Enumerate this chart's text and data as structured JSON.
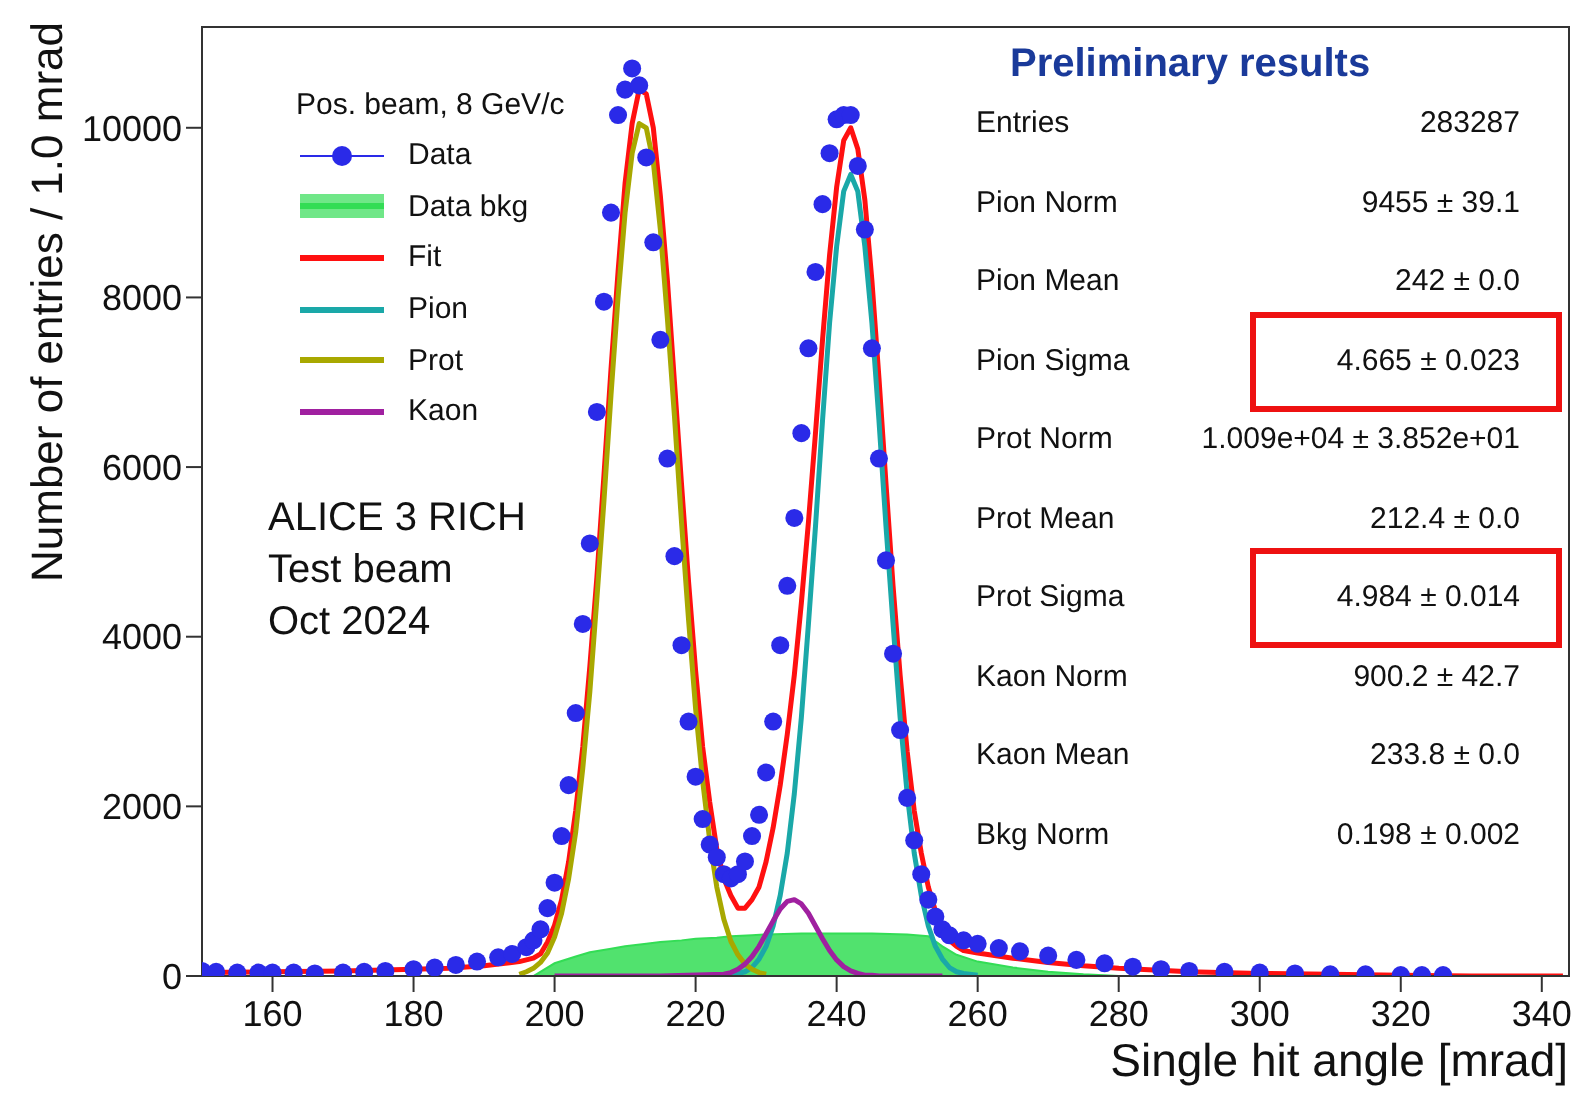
{
  "chart_data": {
    "type": "scatter",
    "xlabel": "Single hit angle [mrad]",
    "ylabel": "Number of entries / 1.0 mrad",
    "legend_title": "Pos. beam, 8 GeV/c",
    "legend": "top left",
    "xlim": [
      150,
      344
    ],
    "xticks": [
      160,
      180,
      200,
      220,
      240,
      260,
      280,
      300,
      320,
      340
    ],
    "ylim": [
      0,
      11200
    ],
    "yticks": [
      0,
      2000,
      4000,
      6000,
      8000,
      10000
    ],
    "annotations": [
      "Preliminary results",
      "ALICE 3 RICH",
      "Test beam",
      "Oct 2024",
      "Entries",
      "283287",
      "Pion Norm",
      "9455 ± 39.1",
      "Pion Mean",
      "242 ± 0.0",
      "Pion Sigma",
      "4.665 ± 0.023",
      "Prot Norm",
      "1.009e+04 ± 3.852e+01",
      "Prot Mean",
      "212.4 ± 0.0",
      "Prot Sigma",
      "4.984 ± 0.014",
      "Kaon Norm",
      "900.2 ± 42.7",
      "Kaon Mean",
      "233.8 ± 0.0",
      "Bkg Norm",
      "0.198 ± 0.002"
    ],
    "series": [
      {
        "name": "Data",
        "marker": "circle",
        "color": "#2a2ae8",
        "x": [
          150,
          152,
          155,
          158,
          160,
          163,
          166,
          170,
          173,
          176,
          180,
          183,
          186,
          189,
          192,
          194,
          196,
          197,
          198,
          199,
          200,
          201,
          202,
          203,
          204,
          205,
          206,
          207,
          208,
          209,
          210,
          211,
          212,
          213,
          214,
          215,
          216,
          217,
          218,
          219,
          220,
          221,
          222,
          223,
          224,
          225,
          226,
          227,
          228,
          229,
          230,
          231,
          232,
          233,
          234,
          235,
          236,
          237,
          238,
          239,
          240,
          241,
          242,
          243,
          244,
          245,
          246,
          247,
          248,
          249,
          250,
          251,
          252,
          253,
          254,
          255,
          256,
          258,
          260,
          263,
          266,
          270,
          274,
          278,
          282,
          286,
          290,
          295,
          300,
          305,
          310,
          315,
          320,
          323,
          326
        ],
        "values": [
          60,
          50,
          40,
          40,
          40,
          40,
          30,
          40,
          50,
          60,
          80,
          100,
          130,
          170,
          220,
          260,
          340,
          420,
          550,
          800,
          1100,
          1650,
          2250,
          3100,
          4150,
          5100,
          6650,
          7950,
          9000,
          10150,
          10450,
          10700,
          10500,
          9650,
          8650,
          7500,
          6100,
          4950,
          3900,
          3000,
          2350,
          1850,
          1550,
          1400,
          1200,
          1150,
          1200,
          1350,
          1650,
          1900,
          2400,
          3000,
          3900,
          4600,
          5400,
          6400,
          7400,
          8300,
          9100,
          9700,
          10100,
          10150,
          10150,
          9550,
          8800,
          7400,
          6100,
          4900,
          3800,
          2900,
          2100,
          1600,
          1200,
          900,
          700,
          550,
          480,
          420,
          380,
          330,
          290,
          240,
          190,
          150,
          110,
          80,
          60,
          50,
          40,
          30,
          20,
          20,
          10,
          10,
          10
        ]
      },
      {
        "name": "Data bkg",
        "type": "area",
        "color": "#33dd55",
        "x": [
          197,
          200,
          203,
          205,
          208,
          210,
          213,
          215,
          218,
          220,
          223,
          225,
          228,
          230,
          235,
          240,
          245,
          250,
          253,
          255,
          257,
          260,
          265,
          270,
          275,
          280
        ],
        "values": [
          0,
          150,
          230,
          280,
          320,
          350,
          380,
          400,
          420,
          440,
          450,
          470,
          480,
          490,
          500,
          500,
          500,
          490,
          470,
          350,
          250,
          170,
          100,
          50,
          20,
          0
        ]
      },
      {
        "name": "Fit",
        "type": "line",
        "color": "#ff1010",
        "x": [
          150,
          160,
          170,
          180,
          185,
          190,
          193,
          195,
          197,
          198,
          199,
          200,
          201,
          202,
          203,
          204,
          205,
          206,
          207,
          208,
          209,
          210,
          211,
          212,
          213,
          214,
          215,
          216,
          217,
          218,
          219,
          220,
          221,
          222,
          223,
          224,
          225,
          226,
          227,
          228,
          229,
          230,
          231,
          232,
          233,
          234,
          235,
          236,
          237,
          238,
          239,
          240,
          241,
          242,
          243,
          244,
          245,
          246,
          247,
          248,
          249,
          250,
          251,
          252,
          253,
          254,
          255,
          256,
          257,
          258,
          260,
          265,
          270,
          275,
          280,
          290,
          300,
          310,
          320,
          330,
          343
        ],
        "values": [
          40,
          50,
          60,
          80,
          90,
          120,
          150,
          170,
          210,
          260,
          400,
          600,
          900,
          1350,
          1950,
          2700,
          3650,
          4700,
          5900,
          7150,
          8300,
          9350,
          10050,
          10450,
          10400,
          10000,
          9200,
          8200,
          7000,
          5800,
          4650,
          3600,
          2700,
          2050,
          1500,
          1150,
          950,
          800,
          800,
          900,
          1050,
          1350,
          1750,
          2250,
          2850,
          3550,
          4400,
          5350,
          6400,
          7500,
          8500,
          9300,
          9850,
          10000,
          9750,
          9150,
          8200,
          7050,
          5800,
          4600,
          3550,
          2650,
          1950,
          1450,
          1050,
          770,
          550,
          420,
          350,
          300,
          270,
          210,
          160,
          120,
          90,
          50,
          30,
          20,
          10,
          0,
          0
        ]
      },
      {
        "name": "Pion",
        "type": "line",
        "color": "#1aa8a8",
        "x": [
          224,
          225,
          226,
          227,
          228,
          229,
          230,
          231,
          232,
          233,
          234,
          235,
          236,
          237,
          238,
          239,
          240,
          241,
          242,
          243,
          244,
          245,
          246,
          247,
          248,
          249,
          250,
          251,
          252,
          253,
          254,
          255,
          256,
          257,
          258,
          260
        ],
        "values": [
          10,
          10,
          30,
          50,
          100,
          200,
          350,
          590,
          950,
          1450,
          2150,
          3050,
          4150,
          5300,
          6550,
          7700,
          8600,
          9250,
          9450,
          9250,
          8600,
          7700,
          6550,
          5300,
          4150,
          3050,
          2150,
          1450,
          950,
          590,
          350,
          200,
          100,
          50,
          30,
          10
        ]
      },
      {
        "name": "Prot",
        "type": "line",
        "color": "#a8a800",
        "x": [
          195,
          196,
          197,
          198,
          199,
          200,
          201,
          202,
          203,
          204,
          205,
          206,
          207,
          208,
          209,
          210,
          211,
          212,
          213,
          214,
          215,
          216,
          217,
          218,
          219,
          220,
          221,
          222,
          223,
          224,
          225,
          226,
          227,
          228,
          229,
          230
        ],
        "values": [
          20,
          50,
          90,
          160,
          270,
          460,
          740,
          1150,
          1700,
          2450,
          3350,
          4450,
          5600,
          6850,
          8000,
          9000,
          9700,
          10050,
          10000,
          9600,
          8800,
          7750,
          6600,
          5350,
          4200,
          3150,
          2300,
          1600,
          1050,
          670,
          410,
          250,
          140,
          80,
          40,
          20
        ]
      },
      {
        "name": "Kaon",
        "type": "line",
        "color": "#a020a0",
        "x": [
          200,
          215,
          224,
          225,
          226,
          227,
          228,
          229,
          230,
          231,
          232,
          233,
          234,
          235,
          236,
          237,
          238,
          239,
          240,
          241,
          242,
          243,
          244,
          245,
          246,
          255
        ],
        "values": [
          0,
          0,
          20,
          40,
          80,
          140,
          230,
          350,
          500,
          650,
          790,
          880,
          900,
          850,
          740,
          590,
          440,
          300,
          190,
          110,
          60,
          30,
          10,
          10,
          0,
          0
        ]
      }
    ]
  }
}
